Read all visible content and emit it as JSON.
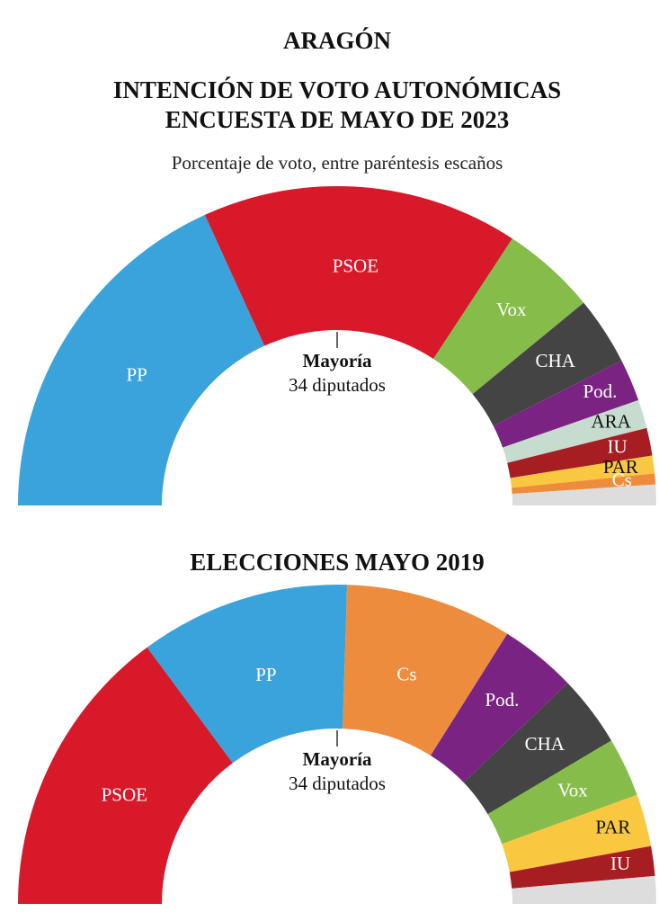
{
  "title": "ARAGÓN",
  "subtitle": "Porcentaje de voto, entre paréntesis escaños",
  "chart_data": [
    {
      "type": "half-donut",
      "title": [
        "INTENCIÓN DE VOTO AUTONÓMICAS",
        "ENCUESTA DE MAYO DE 2023"
      ],
      "annotation": [
        "Mayoría",
        "34 diputados"
      ],
      "categories": [
        "PP",
        "PSOE",
        "Vox",
        "CHA",
        "Pod.",
        "ARA",
        "IU",
        "PAR",
        "Cs",
        null
      ],
      "values": [
        36.4,
        32.1,
        9.6,
        6.9,
        4.3,
        2.9,
        2.8,
        1.8,
        1.1,
        2.1
      ],
      "colors": [
        "#3aa3dc",
        "#d7192a",
        "#86bd4a",
        "#444444",
        "#7b2382",
        "#c6dccf",
        "#a61e22",
        "#f9c840",
        "#ee8c3e",
        "#dddddd"
      ]
    },
    {
      "type": "half-donut",
      "title": [
        "ELECCIONES MAYO 2019"
      ],
      "annotation": [
        "Mayoría",
        "34 diputados"
      ],
      "categories": [
        "PSOE",
        "PP",
        "Cs",
        "Pod.",
        "CHA",
        "Vox",
        "PAR",
        "IU",
        null
      ],
      "values": [
        29.7,
        21.3,
        16.9,
        7.8,
        7.2,
        6.0,
        5.3,
        3.0,
        2.8
      ],
      "colors": [
        "#d7192a",
        "#3aa3dc",
        "#ee8c3e",
        "#7b2382",
        "#444444",
        "#86bd4a",
        "#f9c840",
        "#a61e22",
        "#dddddd"
      ]
    }
  ]
}
